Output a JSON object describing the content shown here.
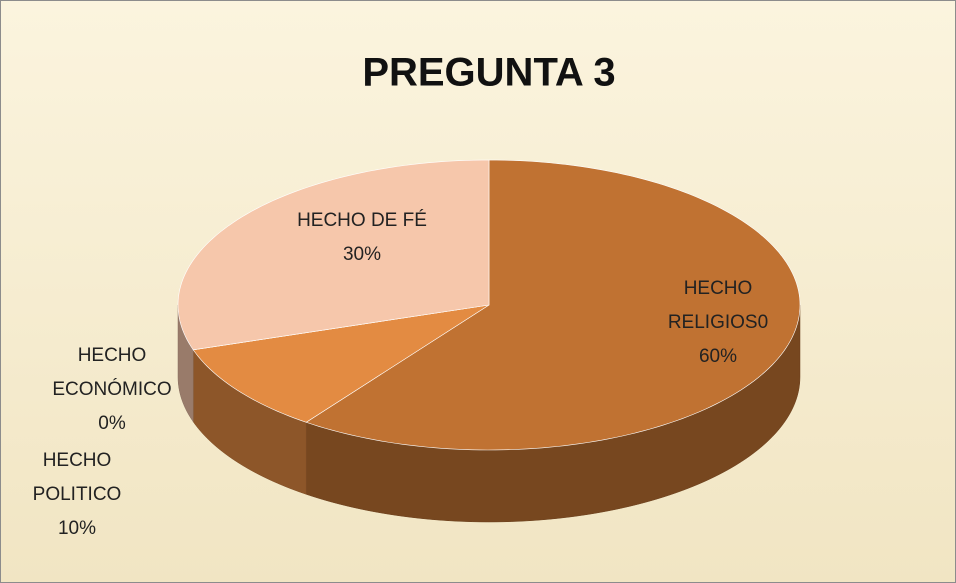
{
  "chart_data": {
    "type": "pie3d",
    "title": "PREGUNTA 3",
    "categories": [
      "HECHO RELIGIOS0",
      "HECHO POLITICO",
      "HECHO ECONÓMICO",
      "HECHO DE FÉ"
    ],
    "values": [
      60,
      10,
      0,
      30
    ],
    "value_labels": [
      "60%",
      "10%",
      "0%",
      "30%"
    ],
    "colors": [
      "#c07232",
      "#e38b42",
      "#d47c38",
      "#f6c7ab"
    ]
  }
}
